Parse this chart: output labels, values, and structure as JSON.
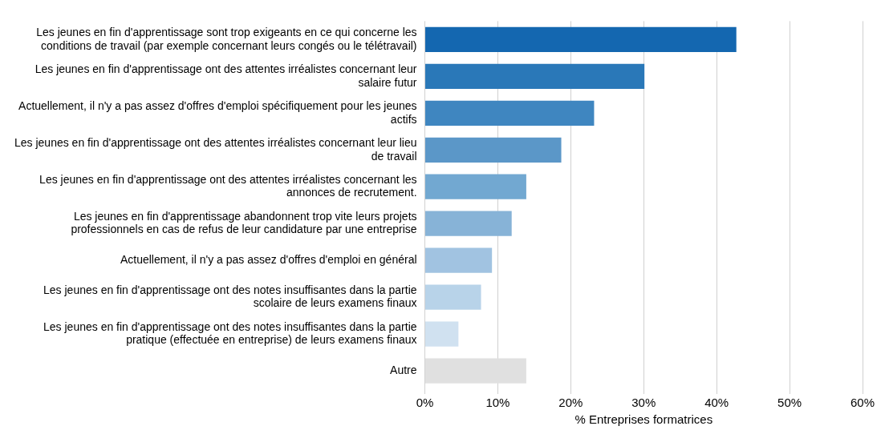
{
  "chart_data": {
    "type": "bar",
    "orientation": "horizontal",
    "xlabel": "% Entreprises formatrices",
    "categories": [
      "Les jeunes en fin d'apprentissage sont trop exigeants en ce qui concerne les conditions de travail (par exemple concernant leurs congés ou le télétravail)",
      "Les jeunes en fin d'apprentissage ont des attentes irréalistes concernant leur salaire futur",
      "Actuellement, il n'y a pas assez d'offres d'emploi spécifiquement pour les jeunes actifs",
      "Les jeunes en fin d'apprentissage ont des attentes irréalistes concernant leur lieu de travail",
      "Les jeunes en fin d'apprentissage ont des attentes irréalistes concernant les annonces de recrutement.",
      "Les jeunes en fin d'apprentissage abandonnent trop vite leurs projets professionnels en cas de refus de leur candidature par une entreprise",
      "Actuellement, il n'y a pas assez d'offres d'emploi en général",
      "Les jeunes en fin d'apprentissage ont des notes insuffisantes dans la partie scolaire de leurs examens finaux",
      "Les jeunes en fin d'apprentissage ont des notes insuffisantes dans la partie pratique (effectuée en entreprise) de leurs examens finaux",
      "Autre"
    ],
    "values": [
      42.7,
      30.1,
      23.2,
      18.7,
      13.9,
      11.9,
      9.2,
      7.7,
      4.6,
      13.9
    ],
    "colors": [
      "#1467b0",
      "#2a78b8",
      "#3f86c0",
      "#5b97c8",
      "#72a8d1",
      "#87b3d7",
      "#a1c3e1",
      "#b8d3e9",
      "#d0e1f0",
      "#e0e0e0"
    ],
    "xlim": [
      0,
      60
    ],
    "xticks": [
      {
        "value": 0,
        "label": "0%"
      },
      {
        "value": 10,
        "label": "10%"
      },
      {
        "value": 20,
        "label": "20%"
      },
      {
        "value": 30,
        "label": "30%"
      },
      {
        "value": 40,
        "label": "40%"
      },
      {
        "value": 50,
        "label": "50%"
      },
      {
        "value": 60,
        "label": "60%"
      }
    ],
    "grid": "x"
  }
}
